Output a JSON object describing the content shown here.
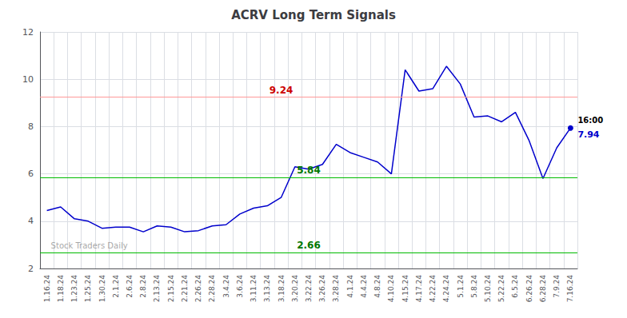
{
  "chart_data": {
    "type": "line",
    "title": "ACRV Long Term Signals",
    "categories": [
      "1.16.24",
      "1.18.24",
      "1.23.24",
      "1.25.24",
      "1.30.24",
      "2.1.24",
      "2.6.24",
      "2.8.24",
      "2.13.24",
      "2.15.24",
      "2.21.24",
      "2.26.24",
      "2.28.24",
      "3.4.24",
      "3.6.24",
      "3.11.24",
      "3.13.24",
      "3.18.24",
      "3.20.24",
      "3.22.24",
      "3.26.24",
      "3.28.24",
      "4.1.24",
      "4.4.24",
      "4.8.24",
      "4.10.24",
      "4.15.24",
      "4.17.24",
      "4.22.24",
      "4.24.24",
      "5.1.24",
      "5.8.24",
      "5.10.24",
      "5.22.24",
      "6.5.24",
      "6.26.24",
      "6.28.24",
      "7.9.24",
      "7.16.24"
    ],
    "values": [
      4.45,
      4.6,
      4.1,
      4.0,
      3.7,
      3.75,
      3.75,
      3.55,
      3.8,
      3.75,
      3.55,
      3.6,
      3.8,
      3.85,
      4.3,
      4.55,
      4.65,
      5.0,
      6.3,
      6.2,
      6.4,
      7.25,
      6.9,
      6.7,
      6.5,
      6.0,
      10.4,
      9.5,
      9.6,
      10.55,
      9.8,
      8.4,
      8.45,
      8.2,
      8.6,
      7.4,
      5.8,
      7.1,
      7.94
    ],
    "color": "#0000cc",
    "ylim": [
      2,
      12
    ],
    "yticks": [
      2,
      4,
      6,
      8,
      10,
      12
    ],
    "grid": true,
    "hlines": [
      {
        "value": 9.24,
        "color": "#ff9999",
        "label": "9.24",
        "label_color": "#cc0000",
        "label_x": "3.18.24"
      },
      {
        "value": 5.84,
        "color": "#00bb00",
        "label": "5.84",
        "label_color": "#007700",
        "label_x": "3.22.24"
      },
      {
        "value": 2.66,
        "color": "#00bb00",
        "label": "2.66",
        "label_color": "#007700",
        "label_x": "3.22.24"
      }
    ],
    "annotations": [
      {
        "text": "16:00",
        "x": "7.16.24",
        "y": 7.94,
        "color": "#000000"
      },
      {
        "text": "7.94",
        "x": "7.16.24",
        "y": 7.94,
        "color": "#0000cc"
      }
    ],
    "watermark": "Stock Traders Daily"
  }
}
